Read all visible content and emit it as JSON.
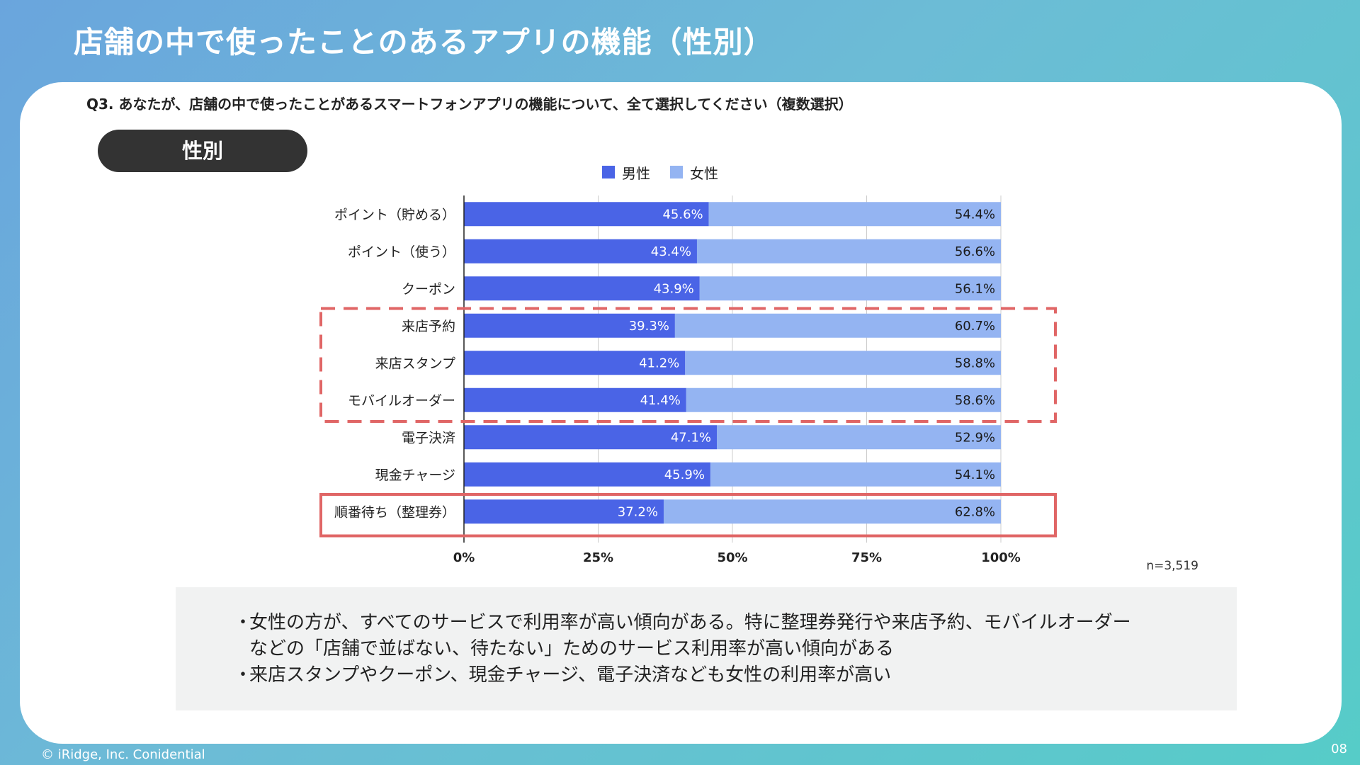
{
  "page": {
    "title": "店舗の中で使ったことのあるアプリの機能（性別）",
    "question": "Q3. あなたが、店舗の中で使ったことがあるスマートフォンアプリの機能について、全て選択してください（複数選択）",
    "segment_label": "性別",
    "sample_size": "n=3,519",
    "copyright": "© iRidge, Inc. Conidential",
    "page_number": "08"
  },
  "notes": {
    "line1": "女性の方が、すべてのサービスで利用率が高い傾向がある。特に整理券発行や来店予約、モバイルオーダー",
    "line1_cont": "などの「店舗で並ばない、待たない」ためのサービス利用率が高い傾向がある",
    "line2": "来店スタンプやクーポン、現金チャージ、電子決済なども女性の利用率が高い",
    "bullet": "・"
  },
  "colors": {
    "male": "#4a64e6",
    "female": "#94b4f2",
    "highlight": "#e06666",
    "grid": "#cccccc"
  },
  "chart_data": {
    "type": "bar",
    "orientation": "horizontal",
    "stacked": "100%",
    "categories": [
      "ポイント（貯める）",
      "ポイント（使う）",
      "クーポン",
      "来店予約",
      "来店スタンプ",
      "モバイルオーダー",
      "電子決済",
      "現金チャージ",
      "順番待ち（整理券）"
    ],
    "series": [
      {
        "name": "男性",
        "values": [
          45.6,
          43.4,
          43.9,
          39.3,
          41.2,
          41.4,
          47.1,
          45.9,
          37.2
        ]
      },
      {
        "name": "女性",
        "values": [
          54.4,
          56.6,
          56.1,
          60.7,
          58.8,
          58.6,
          52.9,
          54.1,
          62.8
        ]
      }
    ],
    "xlim": [
      0,
      100
    ],
    "xticks": [
      "0%",
      "25%",
      "50%",
      "75%",
      "100%"
    ],
    "legend_position": "top",
    "grid": true,
    "highlights": [
      {
        "style": "dashed",
        "categories": [
          "来店予約",
          "来店スタンプ",
          "モバイルオーダー"
        ]
      },
      {
        "style": "solid",
        "categories": [
          "順番待ち（整理券）"
        ]
      }
    ]
  }
}
